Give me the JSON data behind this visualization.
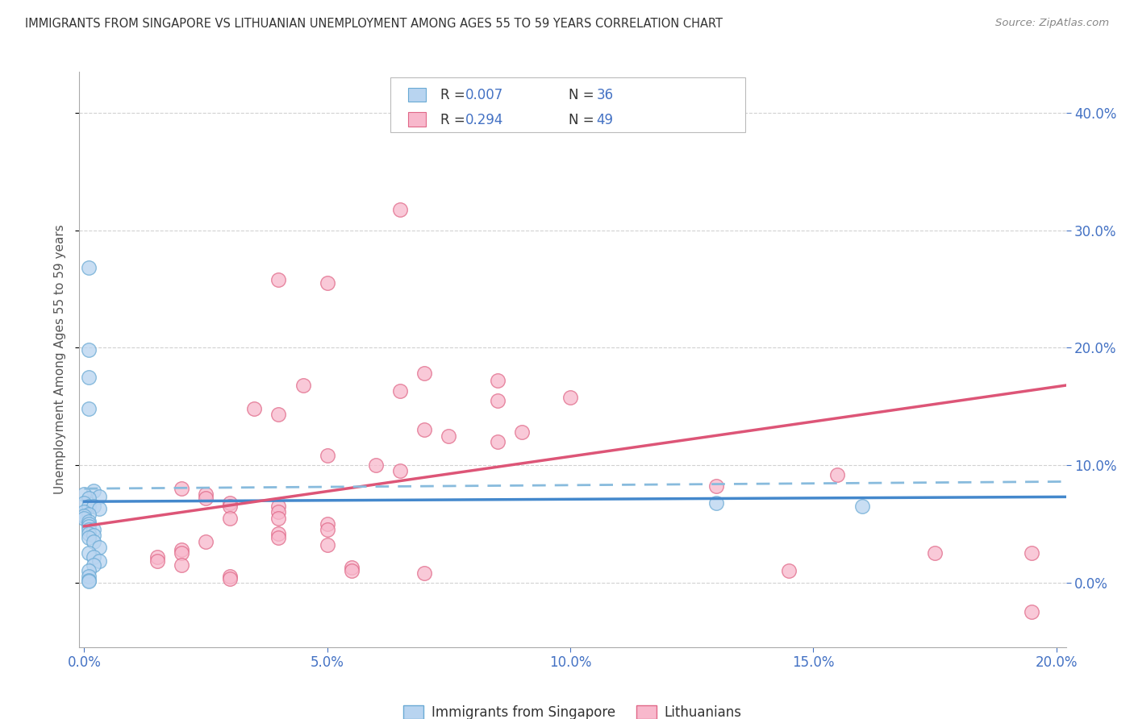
{
  "title": "IMMIGRANTS FROM SINGAPORE VS LITHUANIAN UNEMPLOYMENT AMONG AGES 55 TO 59 YEARS CORRELATION CHART",
  "source": "Source: ZipAtlas.com",
  "ylabel": "Unemployment Among Ages 55 to 59 years",
  "xlim": [
    -0.001,
    0.202
  ],
  "ylim": [
    -0.055,
    0.435
  ],
  "yticks": [
    0.0,
    0.1,
    0.2,
    0.3,
    0.4
  ],
  "xticks": [
    0.0,
    0.05,
    0.1,
    0.15,
    0.2
  ],
  "legend1_label": "Immigrants from Singapore",
  "legend2_label": "Lithuanians",
  "R1": "0.007",
  "N1": "36",
  "R2": "0.294",
  "N2": "49",
  "scatter_blue": [
    [
      0.001,
      0.268
    ],
    [
      0.001,
      0.198
    ],
    [
      0.001,
      0.175
    ],
    [
      0.001,
      0.148
    ],
    [
      0.002,
      0.078
    ],
    [
      0.0,
      0.075
    ],
    [
      0.003,
      0.073
    ],
    [
      0.001,
      0.072
    ],
    [
      0.0,
      0.068
    ],
    [
      0.001,
      0.065
    ],
    [
      0.002,
      0.065
    ],
    [
      0.003,
      0.063
    ],
    [
      0.0,
      0.06
    ],
    [
      0.001,
      0.058
    ],
    [
      0.0,
      0.057
    ],
    [
      0.0,
      0.055
    ],
    [
      0.001,
      0.052
    ],
    [
      0.001,
      0.05
    ],
    [
      0.001,
      0.048
    ],
    [
      0.001,
      0.045
    ],
    [
      0.002,
      0.045
    ],
    [
      0.001,
      0.042
    ],
    [
      0.002,
      0.04
    ],
    [
      0.001,
      0.038
    ],
    [
      0.002,
      0.035
    ],
    [
      0.003,
      0.03
    ],
    [
      0.001,
      0.025
    ],
    [
      0.002,
      0.022
    ],
    [
      0.003,
      0.018
    ],
    [
      0.002,
      0.015
    ],
    [
      0.001,
      0.01
    ],
    [
      0.001,
      0.005
    ],
    [
      0.001,
      0.002
    ],
    [
      0.001,
      0.001
    ],
    [
      0.13,
      0.068
    ],
    [
      0.16,
      0.065
    ]
  ],
  "scatter_pink": [
    [
      0.065,
      0.318
    ],
    [
      0.04,
      0.258
    ],
    [
      0.05,
      0.255
    ],
    [
      0.07,
      0.178
    ],
    [
      0.085,
      0.172
    ],
    [
      0.045,
      0.168
    ],
    [
      0.065,
      0.163
    ],
    [
      0.1,
      0.158
    ],
    [
      0.085,
      0.155
    ],
    [
      0.035,
      0.148
    ],
    [
      0.04,
      0.143
    ],
    [
      0.07,
      0.13
    ],
    [
      0.09,
      0.128
    ],
    [
      0.075,
      0.125
    ],
    [
      0.085,
      0.12
    ],
    [
      0.05,
      0.108
    ],
    [
      0.06,
      0.1
    ],
    [
      0.065,
      0.095
    ],
    [
      0.13,
      0.082
    ],
    [
      0.02,
      0.08
    ],
    [
      0.025,
      0.075
    ],
    [
      0.025,
      0.072
    ],
    [
      0.03,
      0.068
    ],
    [
      0.03,
      0.065
    ],
    [
      0.04,
      0.065
    ],
    [
      0.04,
      0.06
    ],
    [
      0.04,
      0.055
    ],
    [
      0.03,
      0.055
    ],
    [
      0.05,
      0.05
    ],
    [
      0.05,
      0.045
    ],
    [
      0.04,
      0.042
    ],
    [
      0.04,
      0.038
    ],
    [
      0.025,
      0.035
    ],
    [
      0.05,
      0.032
    ],
    [
      0.02,
      0.028
    ],
    [
      0.02,
      0.025
    ],
    [
      0.015,
      0.022
    ],
    [
      0.015,
      0.018
    ],
    [
      0.02,
      0.015
    ],
    [
      0.055,
      0.013
    ],
    [
      0.055,
      0.01
    ],
    [
      0.07,
      0.008
    ],
    [
      0.03,
      0.005
    ],
    [
      0.03,
      0.003
    ],
    [
      0.155,
      0.092
    ],
    [
      0.175,
      0.025
    ],
    [
      0.145,
      0.01
    ],
    [
      0.195,
      0.025
    ],
    [
      0.195,
      -0.025
    ]
  ],
  "blue_solid_line_x": [
    0.0,
    0.202
  ],
  "blue_solid_line_y": [
    0.069,
    0.073
  ],
  "pink_solid_line_x": [
    0.0,
    0.202
  ],
  "pink_solid_line_y": [
    0.048,
    0.168
  ],
  "blue_dashed_line_x": [
    0.0,
    0.202
  ],
  "blue_dashed_line_y": [
    0.08,
    0.086
  ],
  "color_blue_fill": "#b8d4f0",
  "color_blue_edge": "#6aaad4",
  "color_pink_fill": "#f8b8cc",
  "color_pink_edge": "#e06888",
  "color_blue_solid": "#4488cc",
  "color_pink_solid": "#dd5577",
  "color_blue_dashed": "#88bbdd",
  "background_color": "#ffffff",
  "grid_color": "#cccccc",
  "title_color": "#333333",
  "tick_color": "#4472c4",
  "ylabel_color": "#555555",
  "source_color": "#888888",
  "legend_R_color": "#333333",
  "legend_N_color": "#4472c4"
}
